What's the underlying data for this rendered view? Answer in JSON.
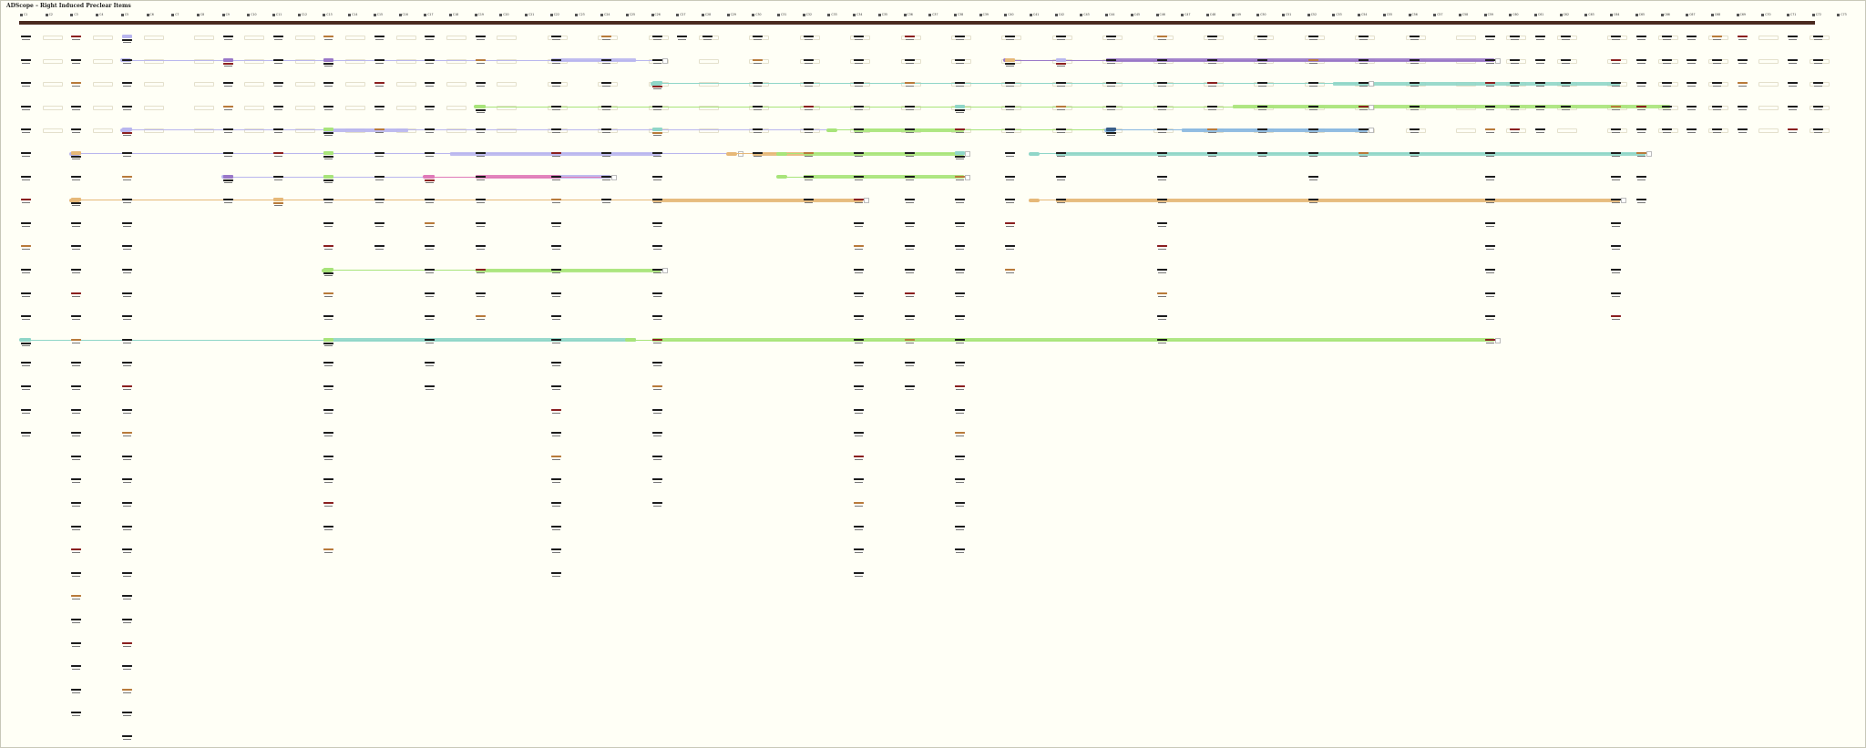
{
  "title": "ADScope – Right Induced Preclear Items",
  "columns": [
    "C1",
    "C2",
    "C3",
    "C4",
    "C5",
    "C6",
    "C7",
    "C8",
    "C9",
    "C10",
    "C11",
    "C12",
    "C13",
    "C14",
    "C15",
    "C16",
    "C17",
    "C18",
    "C19",
    "C20",
    "C21",
    "C22",
    "C23",
    "C24",
    "C25",
    "C26",
    "C27",
    "C28",
    "C29",
    "C30",
    "C31",
    "C32",
    "C33",
    "C34",
    "C35",
    "C36",
    "C37",
    "C38",
    "C39",
    "C40",
    "C41",
    "C42",
    "C43",
    "C44",
    "C45",
    "C46",
    "C47",
    "C48",
    "C49",
    "C50",
    "C51",
    "C52",
    "C53",
    "C54",
    "C55",
    "C56",
    "C57",
    "C58",
    "C59",
    "C60",
    "C61",
    "C62",
    "C63",
    "C64",
    "C65",
    "C66",
    "C67",
    "C68",
    "C69",
    "C70",
    "C71",
    "C72",
    "C73"
  ],
  "colors": {
    "timeline": "#4a2a20",
    "lavender": "#b9b6ee",
    "purple": "#9a78c8",
    "teal": "#8fd6c8",
    "green": "#a8e47a",
    "orange": "#e6b878",
    "blue": "#8ab8e0",
    "pink": "#e07ab8",
    "slate": "#3a5e88"
  },
  "column_nodes": {
    "0": [
      0,
      1,
      2,
      3,
      4,
      5,
      6,
      7,
      8,
      9,
      10,
      11,
      12,
      13,
      14,
      15,
      16,
      17
    ],
    "2": [
      0,
      1,
      2,
      3,
      4,
      5,
      6,
      7,
      8,
      9,
      10,
      11,
      12,
      13,
      14,
      15,
      16,
      17,
      18,
      19,
      20,
      21,
      22,
      23,
      24,
      25,
      26,
      27,
      28,
      29
    ],
    "4": [
      0,
      1,
      2,
      3,
      4,
      5,
      6,
      7,
      8,
      9,
      10,
      11,
      12,
      13,
      14,
      15,
      16,
      17,
      18,
      19,
      20,
      21,
      22,
      23,
      24,
      25,
      26,
      27,
      28,
      29,
      30
    ],
    "8": [
      0,
      1,
      2,
      3,
      4,
      5,
      6,
      7
    ],
    "10": [
      0,
      1,
      2,
      3,
      4,
      5,
      6,
      7
    ],
    "12": [
      0,
      1,
      2,
      3,
      4,
      5,
      6,
      7,
      8,
      9,
      10,
      11,
      12,
      13,
      14,
      15,
      16,
      17,
      18,
      19,
      20,
      21,
      22
    ],
    "14": [
      0,
      1,
      2,
      3,
      4,
      5,
      6,
      7,
      8,
      9
    ],
    "16": [
      0,
      1,
      2,
      3,
      4,
      5,
      6,
      7,
      8,
      9,
      10,
      11,
      12,
      13,
      14,
      15
    ],
    "18": [
      0,
      1,
      2,
      3,
      4,
      5,
      6,
      7,
      8,
      9,
      10,
      11,
      12
    ],
    "21": [
      0,
      1,
      2,
      3,
      4,
      5,
      6,
      7,
      8,
      9,
      10,
      11,
      12,
      13,
      14,
      15,
      16,
      17,
      18,
      19,
      20,
      21,
      22,
      23
    ],
    "23": [
      0,
      1,
      2,
      3,
      4,
      5,
      6,
      7
    ],
    "25": [
      0,
      1,
      2,
      3,
      4,
      5,
      6,
      7,
      8,
      9,
      10,
      11,
      12,
      13,
      14,
      15,
      16,
      17,
      18,
      19,
      20
    ],
    "26": [
      0
    ],
    "27": [
      0
    ],
    "29": [
      0,
      1,
      2,
      3,
      4,
      5
    ],
    "31": [
      0,
      1,
      2,
      3,
      4,
      5,
      6,
      7
    ],
    "33": [
      0,
      1,
      2,
      3,
      4,
      5,
      6,
      7,
      8,
      9,
      10,
      11,
      12,
      13,
      14,
      15,
      16,
      17,
      18,
      19,
      20,
      21,
      22,
      23
    ],
    "35": [
      0,
      1,
      2,
      3,
      4,
      5,
      6,
      7,
      8,
      9,
      10,
      11,
      12,
      13,
      14,
      15
    ],
    "37": [
      0,
      1,
      2,
      3,
      4,
      5,
      6,
      7,
      8,
      9,
      10,
      11,
      12,
      13,
      14,
      15,
      16,
      17,
      18,
      19,
      20,
      21,
      22
    ],
    "39": [
      0,
      1,
      2,
      3,
      4,
      5,
      6,
      7,
      8,
      9,
      10
    ],
    "41": [
      0,
      1,
      2,
      3,
      4,
      5,
      6,
      7
    ],
    "43": [
      0,
      1,
      2,
      3,
      4
    ],
    "45": [
      0,
      1,
      2,
      3,
      4,
      5,
      6,
      7,
      8,
      9,
      10,
      11,
      12,
      13
    ],
    "47": [
      0,
      1,
      2,
      3,
      4,
      5
    ],
    "49": [
      0,
      1,
      2,
      3,
      4,
      5
    ],
    "51": [
      0,
      1,
      2,
      3,
      4,
      5,
      6,
      7
    ],
    "53": [
      0,
      1,
      2,
      3,
      4,
      5
    ],
    "55": [
      0,
      1,
      2,
      3,
      4,
      5
    ],
    "58": [
      0,
      1,
      2,
      3,
      4,
      5,
      6,
      7,
      8,
      9,
      10,
      11,
      12,
      13
    ],
    "59": [
      0,
      1,
      2,
      3,
      4
    ],
    "60": [
      0,
      1,
      2,
      3,
      4
    ],
    "61": [
      0,
      1,
      2,
      3
    ],
    "63": [
      0,
      1,
      2,
      3,
      4,
      5,
      6,
      7,
      8,
      9,
      10,
      11,
      12
    ],
    "64": [
      0,
      1,
      2,
      3,
      4,
      5,
      6,
      7
    ],
    "65": [
      0,
      1,
      2,
      3,
      4
    ],
    "66": [
      0,
      1,
      2,
      3,
      4
    ],
    "67": [
      0,
      1,
      2,
      3,
      4
    ],
    "68": [
      0,
      1,
      2,
      3,
      4
    ],
    "70": [
      0,
      1,
      2,
      3,
      4
    ],
    "71": [
      0,
      1,
      2,
      3,
      4
    ]
  },
  "boxed_nodes": [
    {
      "col": 4,
      "row": 0,
      "color": "lavender"
    },
    {
      "col": 8,
      "row": 1,
      "color": "purple"
    },
    {
      "col": 12,
      "row": 1,
      "color": "purple"
    },
    {
      "col": 4,
      "row": 4,
      "color": "lavender"
    },
    {
      "col": 12,
      "row": 4,
      "color": "green"
    },
    {
      "col": 2,
      "row": 5,
      "color": "orange"
    },
    {
      "col": 12,
      "row": 5,
      "color": "green"
    },
    {
      "col": 8,
      "row": 6,
      "color": "purple"
    },
    {
      "col": 12,
      "row": 6,
      "color": "green"
    },
    {
      "col": 16,
      "row": 6,
      "color": "pink"
    },
    {
      "col": 2,
      "row": 7,
      "color": "orange"
    },
    {
      "col": 10,
      "row": 7,
      "color": "orange"
    },
    {
      "col": 12,
      "row": 10,
      "color": "green"
    },
    {
      "col": 0,
      "row": 13,
      "color": "teal"
    },
    {
      "col": 12,
      "row": 13,
      "color": "green"
    },
    {
      "col": 25,
      "row": 2,
      "color": "teal"
    },
    {
      "col": 25,
      "row": 4,
      "color": "teal"
    },
    {
      "col": 37,
      "row": 3,
      "color": "teal"
    },
    {
      "col": 37,
      "row": 5,
      "color": "teal"
    },
    {
      "col": 39,
      "row": 1,
      "color": "orange"
    },
    {
      "col": 41,
      "row": 1,
      "color": "lavender"
    },
    {
      "col": 43,
      "row": 4,
      "color": "slate"
    },
    {
      "col": 18,
      "row": 3,
      "color": "green"
    }
  ],
  "spans": [
    {
      "row": 1,
      "from": 4,
      "to": 25,
      "color": "lavender",
      "band_from": 21,
      "band_to": 24
    },
    {
      "row": 1,
      "from": 39,
      "to": 58,
      "color": "purple",
      "band_from": 43,
      "band_to": 58
    },
    {
      "row": 2,
      "from": 25,
      "to": 53,
      "color": "teal",
      "band_from": 52,
      "band_to": 63
    },
    {
      "row": 3,
      "from": 18,
      "to": 53,
      "color": "green",
      "band_from": 48,
      "band_to": 65
    },
    {
      "row": 4,
      "from": 4,
      "to": 53,
      "color": "lavender",
      "band_from": 12,
      "band_to": 15
    },
    {
      "row": 4,
      "from": 32,
      "to": 53,
      "color": "green",
      "band_from": 33,
      "band_to": 37
    },
    {
      "row": 4,
      "from": 43,
      "to": 53,
      "color": "blue",
      "band_from": 46,
      "band_to": 53
    },
    {
      "row": 5,
      "from": 2,
      "to": 28,
      "color": "lavender",
      "band_from": 17,
      "band_to": 25
    },
    {
      "row": 5,
      "from": 28,
      "to": 37,
      "color": "orange",
      "band_from": 29,
      "band_to": 31
    },
    {
      "row": 5,
      "from": 30,
      "to": 37,
      "color": "green",
      "band_from": 31,
      "band_to": 37
    },
    {
      "row": 5,
      "from": 40,
      "to": 64,
      "color": "teal",
      "band_from": 41,
      "band_to": 64
    },
    {
      "row": 6,
      "from": 8,
      "to": 23,
      "color": "lavender",
      "band_from": 21,
      "band_to": 23
    },
    {
      "row": 6,
      "from": 16,
      "to": 23,
      "color": "pink",
      "band_from": 18,
      "band_to": 21
    },
    {
      "row": 6,
      "from": 30,
      "to": 37,
      "color": "green",
      "band_from": 31,
      "band_to": 37
    },
    {
      "row": 7,
      "from": 2,
      "to": 33,
      "color": "orange",
      "band_from": 25,
      "band_to": 33
    },
    {
      "row": 7,
      "from": 40,
      "to": 63,
      "color": "orange",
      "band_from": 41,
      "band_to": 63
    },
    {
      "row": 10,
      "from": 12,
      "to": 25,
      "color": "green",
      "band_from": 18,
      "band_to": 25
    },
    {
      "row": 13,
      "from": 0,
      "to": 58,
      "color": "teal",
      "band_from": 12,
      "band_to": 24
    },
    {
      "row": 13,
      "from": 24,
      "to": 58,
      "color": "green",
      "band_from": 25,
      "band_to": 58
    }
  ]
}
